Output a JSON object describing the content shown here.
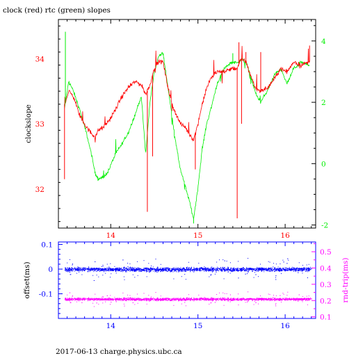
{
  "figure": {
    "title": "clock (red) rtc (green) slopes",
    "footer": "2017-06-13 charge.physics.ubc.ca"
  },
  "chart_data": [
    {
      "type": "line",
      "title": "clock (red) rtc (green) slopes",
      "xlim": [
        13.4,
        16.35
      ],
      "x_ticks": [
        14,
        15,
        16
      ],
      "ylabel": "clockslope",
      "ylim": [
        31.4,
        34.6
      ],
      "y_ticks": [
        32,
        33,
        34
      ],
      "y2lim": [
        -2.1,
        4.7
      ],
      "y2_ticks": [
        -2,
        0,
        2,
        4
      ],
      "colors": {
        "axis": "#000000",
        "red": "#ff0000",
        "green": "#00ee00"
      },
      "series": [
        {
          "axis": "left",
          "color": "#ff0000",
          "x": [
            13.47,
            13.52,
            13.58,
            13.65,
            13.72,
            13.78,
            13.82,
            13.86,
            13.92,
            13.98,
            14.05,
            14.12,
            14.2,
            14.28,
            14.35,
            14.4,
            14.45,
            14.5,
            14.55,
            14.6,
            14.65,
            14.7,
            14.75,
            14.8,
            14.85,
            14.9,
            14.95,
            15.0,
            15.05,
            15.1,
            15.15,
            15.22,
            15.3,
            15.38,
            15.45,
            15.5,
            15.55,
            15.6,
            15.66,
            15.72,
            15.8,
            15.88,
            15.95,
            16.02,
            16.1,
            16.18,
            16.28
          ],
          "y": [
            33.3,
            33.5,
            33.4,
            33.1,
            32.95,
            32.85,
            32.8,
            32.9,
            32.95,
            33.05,
            33.2,
            33.4,
            33.55,
            33.65,
            33.6,
            33.45,
            33.6,
            33.85,
            33.95,
            33.95,
            33.6,
            33.3,
            33.15,
            33.0,
            32.95,
            32.85,
            32.75,
            33.0,
            33.3,
            33.55,
            33.7,
            33.8,
            33.8,
            33.85,
            33.85,
            34.0,
            33.95,
            33.75,
            33.55,
            33.5,
            33.55,
            33.7,
            33.85,
            33.8,
            33.95,
            33.9,
            33.95
          ]
        },
        {
          "axis": "right",
          "color": "#00ee00",
          "x": [
            13.47,
            13.52,
            13.58,
            13.65,
            13.72,
            13.78,
            13.82,
            13.86,
            13.92,
            13.98,
            14.05,
            14.12,
            14.2,
            14.28,
            14.35,
            14.4,
            14.45,
            14.5,
            14.55,
            14.6,
            14.65,
            14.7,
            14.75,
            14.8,
            14.85,
            14.9,
            14.95,
            15.0,
            15.05,
            15.1,
            15.15,
            15.22,
            15.3,
            15.38,
            15.45,
            15.5,
            15.55,
            15.6,
            15.66,
            15.72,
            15.8,
            15.88,
            15.95,
            16.02,
            16.1,
            16.18,
            16.28
          ],
          "y": [
            1.8,
            2.7,
            2.3,
            1.7,
            1.0,
            0.3,
            -0.3,
            -0.5,
            -0.45,
            -0.2,
            0.3,
            0.6,
            1.0,
            1.6,
            2.2,
            0.3,
            2.0,
            3.0,
            3.5,
            3.6,
            2.6,
            1.6,
            0.6,
            -0.2,
            -0.7,
            -1.2,
            -1.8,
            -0.8,
            0.5,
            1.3,
            1.8,
            2.6,
            3.1,
            3.3,
            3.3,
            3.4,
            3.3,
            2.9,
            2.3,
            2.0,
            2.4,
            2.9,
            3.1,
            2.6,
            3.1,
            3.3,
            3.2
          ]
        }
      ]
    },
    {
      "type": "scatter",
      "xlim": [
        13.4,
        16.35
      ],
      "x_ticks": [
        14,
        15,
        16
      ],
      "ylabel": "offset(ms)",
      "ylim": [
        -0.2,
        0.11
      ],
      "y_ticks": [
        -0.1,
        0,
        0.1
      ],
      "y2label": "rnd-trip(ms)",
      "y2lim": [
        0.09,
        0.56
      ],
      "y2_ticks": [
        0.1,
        0.2,
        0.3,
        0.4,
        0.5
      ],
      "colors": {
        "axis": "#0000ff",
        "y2_axis": "#ff00ff",
        "offset": "#0000ff",
        "rnd_trip": "#ff00ff"
      },
      "series": [
        {
          "axis": "left",
          "color": "#0000ff",
          "x_range": [
            13.47,
            16.3
          ],
          "y_center": 0.0,
          "y_spread": 0.012
        },
        {
          "axis": "right",
          "color": "#ff00ff",
          "x_range": [
            13.47,
            16.3
          ],
          "y_center": 0.21,
          "y_spread": 0.012
        }
      ]
    }
  ]
}
